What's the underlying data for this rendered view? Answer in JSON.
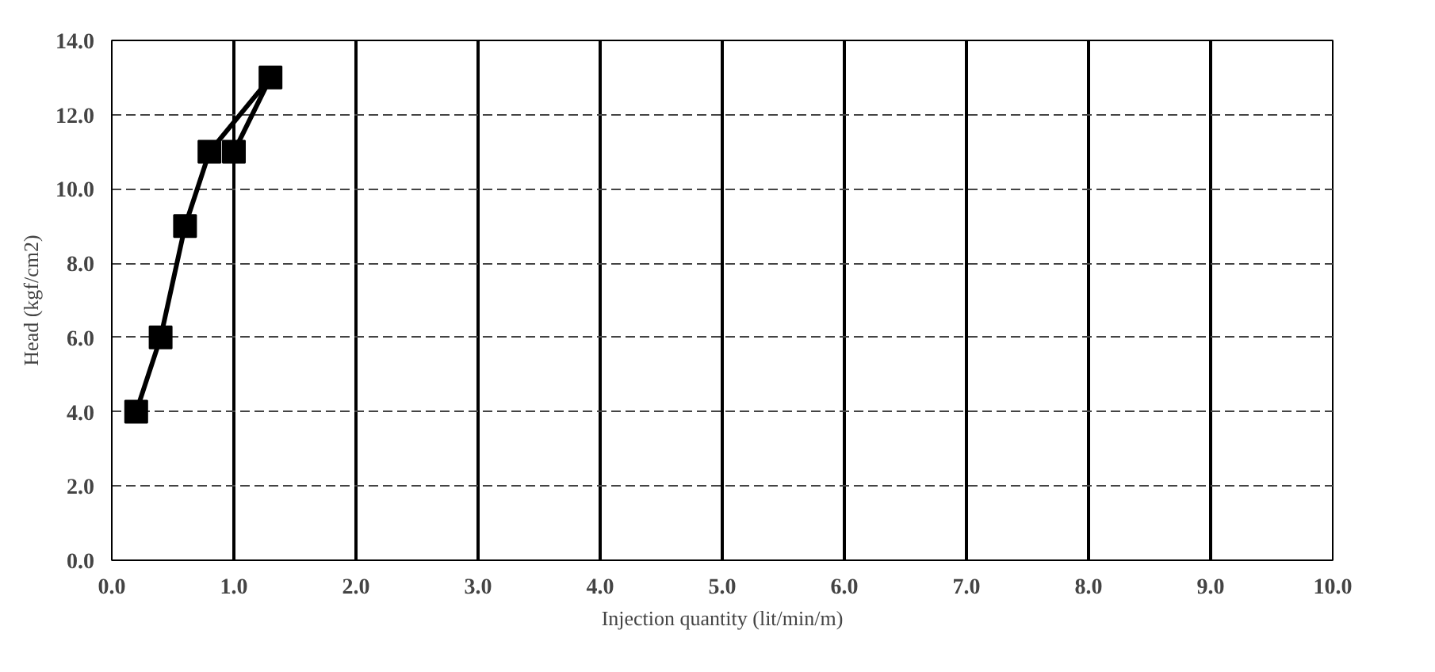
{
  "chart_data": {
    "type": "line",
    "xlabel": "Injection quantity (lit/min/m)",
    "ylabel": "Head (kgf/cm2)",
    "x": [
      0.2,
      0.4,
      0.6,
      0.8,
      1.3,
      1.0
    ],
    "series": [
      {
        "color": "#000000",
        "values": [
          4,
          6,
          9,
          11,
          13,
          11
        ]
      }
    ],
    "xlim": [
      0,
      10
    ],
    "ylim": [
      0,
      14
    ],
    "xticks": [
      {
        "value": 0,
        "label": "0.0"
      },
      {
        "value": 1,
        "label": "1.0"
      },
      {
        "value": 2,
        "label": "2.0"
      },
      {
        "value": 3,
        "label": "3.0"
      },
      {
        "value": 4,
        "label": "4.0"
      },
      {
        "value": 5,
        "label": "5.0"
      },
      {
        "value": 6,
        "label": "6.0"
      },
      {
        "value": 7,
        "label": "7.0"
      },
      {
        "value": 8,
        "label": "8.0"
      },
      {
        "value": 9,
        "label": "9.0"
      },
      {
        "value": 10,
        "label": "10.0"
      }
    ],
    "yticks": [
      {
        "value": 0,
        "label": "0.0"
      },
      {
        "value": 2,
        "label": "2.0"
      },
      {
        "value": 4,
        "label": "4.0"
      },
      {
        "value": 6,
        "label": "6.0"
      },
      {
        "value": 8,
        "label": "8.0"
      },
      {
        "value": 10,
        "label": "10.0"
      },
      {
        "value": 12,
        "label": "12.0"
      },
      {
        "value": 14,
        "label": "14.0"
      }
    ],
    "grid": true,
    "marker": "square",
    "line_style": "solid"
  }
}
